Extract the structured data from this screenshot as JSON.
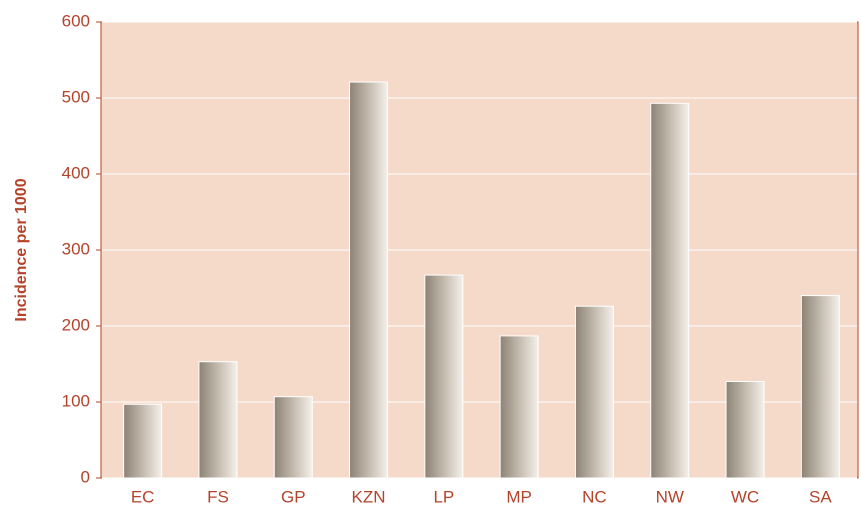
{
  "chart_data": {
    "type": "bar",
    "y_label": "Incidence per 1000",
    "categories": [
      "EC",
      "FS",
      "GP",
      "KZN",
      "LP",
      "MP",
      "NC",
      "NW",
      "WC",
      "SA"
    ],
    "values": [
      97,
      153,
      107,
      521,
      267,
      187,
      226,
      493,
      127,
      240
    ],
    "color": "#9a9084",
    "ylim": [
      0,
      600
    ],
    "yticks": [
      0,
      100,
      200,
      300,
      400,
      500,
      600
    ],
    "grid": true
  }
}
